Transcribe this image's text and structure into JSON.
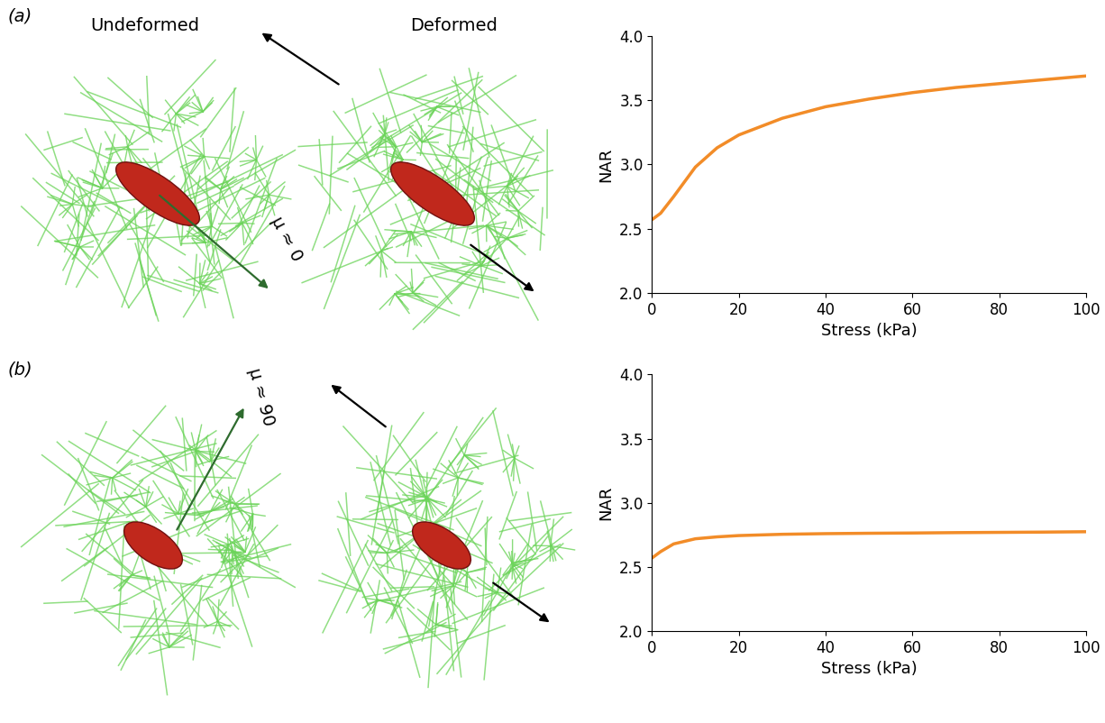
{
  "chart_data": [
    {
      "type": "line",
      "x_label": "Stress (kPa)",
      "y_label": "NAR",
      "color": "#f28c28",
      "x": [
        0,
        2,
        5,
        10,
        15,
        20,
        30,
        40,
        50,
        60,
        70,
        80,
        90,
        100
      ],
      "values": [
        2.57,
        2.62,
        2.75,
        2.98,
        3.13,
        3.23,
        3.36,
        3.45,
        3.51,
        3.56,
        3.6,
        3.63,
        3.66,
        3.69
      ],
      "xlim": [
        0,
        100
      ],
      "ylim": [
        2.0,
        4.0
      ],
      "xticks": [
        0,
        20,
        40,
        60,
        80,
        100
      ],
      "yticks": [
        2.0,
        2.5,
        3.0,
        3.5,
        4.0
      ],
      "grid": false
    },
    {
      "type": "line",
      "x_label": "Stress (kPa)",
      "y_label": "NAR",
      "color": "#f28c28",
      "x": [
        0,
        2,
        5,
        10,
        15,
        20,
        30,
        40,
        50,
        60,
        70,
        80,
        90,
        100
      ],
      "values": [
        2.57,
        2.62,
        2.68,
        2.72,
        2.735,
        2.745,
        2.755,
        2.76,
        2.763,
        2.765,
        2.768,
        2.77,
        2.772,
        2.775
      ],
      "xlim": [
        0,
        100
      ],
      "ylim": [
        2.0,
        4.0
      ],
      "xticks": [
        0,
        20,
        40,
        60,
        80,
        100
      ],
      "yticks": [
        2.0,
        2.5,
        3.0,
        3.5,
        4.0
      ],
      "grid": false
    }
  ],
  "diagram": {
    "headers": [
      "Undeformed",
      "Deformed"
    ],
    "panels": [
      {
        "label": "(a)",
        "angle_label": "μ ≈ 0"
      },
      {
        "label": "(b)",
        "angle_label": "μ ≈ 90"
      }
    ]
  }
}
